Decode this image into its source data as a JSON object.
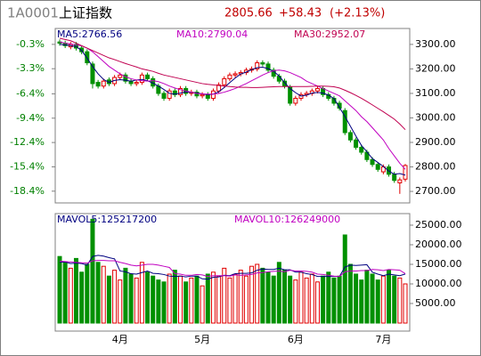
{
  "header": {
    "code": "1A0001",
    "name": "上证指数",
    "price": "2805.66",
    "change": "+58.43",
    "percent": "(+2.13%)"
  },
  "chart_data": [
    {
      "type": "candlestick",
      "categories": [
        null,
        null,
        null,
        null,
        null,
        null,
        null,
        null,
        null,
        null,
        null,
        "4月",
        null,
        null,
        null,
        null,
        null,
        null,
        null,
        null,
        null,
        null,
        null,
        null,
        null,
        null,
        "5月",
        null,
        null,
        null,
        null,
        null,
        null,
        null,
        null,
        null,
        null,
        null,
        null,
        null,
        null,
        null,
        null,
        "6月",
        null,
        null,
        null,
        null,
        null,
        null,
        null,
        null,
        null,
        null,
        null,
        null,
        null,
        null,
        null,
        "7月",
        null,
        null,
        null,
        null
      ],
      "open": [
        3310,
        3305,
        3290,
        3300,
        3285,
        3270,
        3220,
        3145,
        3130,
        3155,
        3140,
        3165,
        3175,
        3150,
        3140,
        3145,
        3175,
        3160,
        3130,
        3100,
        3080,
        3110,
        3095,
        3120,
        3100,
        3105,
        3090,
        3095,
        3080,
        3110,
        3135,
        3160,
        3175,
        3180,
        3185,
        3195,
        3200,
        3225,
        3220,
        3195,
        3170,
        3150,
        3125,
        3060,
        3080,
        3095,
        3100,
        3110,
        3120,
        3095,
        3080,
        3060,
        3030,
        2940,
        2910,
        2880,
        2860,
        2830,
        2810,
        2780,
        2800,
        2770,
        2735,
        2750
      ],
      "high": [
        3320,
        3315,
        3310,
        3310,
        3295,
        3280,
        3230,
        3155,
        3160,
        3165,
        3175,
        3185,
        3185,
        3160,
        3155,
        3185,
        3185,
        3170,
        3140,
        3110,
        3120,
        3120,
        3130,
        3130,
        3115,
        3115,
        3105,
        3105,
        3120,
        3145,
        3170,
        3185,
        3190,
        3195,
        3205,
        3210,
        3235,
        3235,
        3230,
        3205,
        3180,
        3160,
        3135,
        3090,
        3105,
        3110,
        3120,
        3130,
        3130,
        3105,
        3090,
        3070,
        3040,
        2950,
        2920,
        2890,
        2870,
        2840,
        2820,
        2810,
        2810,
        2780,
        2757,
        2812
      ],
      "low": [
        3295,
        3285,
        3280,
        3275,
        3260,
        3215,
        3120,
        3120,
        3120,
        3130,
        3130,
        3155,
        3140,
        3130,
        3130,
        3135,
        3150,
        3120,
        3090,
        3070,
        3070,
        3085,
        3085,
        3090,
        3090,
        3080,
        3080,
        3070,
        3070,
        3100,
        3125,
        3150,
        3165,
        3170,
        3175,
        3185,
        3190,
        3210,
        3185,
        3160,
        3140,
        3120,
        3050,
        3050,
        3070,
        3085,
        3090,
        3100,
        3085,
        3070,
        3050,
        3030,
        2930,
        2900,
        2870,
        2850,
        2820,
        2800,
        2780,
        2770,
        2760,
        2735,
        2690,
        2740
      ],
      "close": [
        3305,
        3295,
        3300,
        3285,
        3270,
        3225,
        3140,
        3130,
        3150,
        3140,
        3165,
        3175,
        3150,
        3140,
        3145,
        3175,
        3160,
        3130,
        3100,
        3080,
        3110,
        3095,
        3120,
        3100,
        3105,
        3090,
        3095,
        3080,
        3110,
        3135,
        3160,
        3175,
        3180,
        3185,
        3195,
        3200,
        3225,
        3220,
        3195,
        3170,
        3150,
        3130,
        3060,
        3080,
        3095,
        3100,
        3110,
        3120,
        3095,
        3080,
        3060,
        3040,
        2940,
        2910,
        2880,
        2860,
        2830,
        2810,
        2790,
        2800,
        2770,
        2745,
        2747,
        2805.66
      ],
      "up_color": "#e00000",
      "down_color": "#009000",
      "series": [
        {
          "name": "MA5:2766.56",
          "color": "#000080",
          "values": [
            3300,
            3298,
            3295,
            3291,
            3275,
            3244,
            3210,
            3180,
            3157,
            3145,
            3153,
            3156,
            3154,
            3150,
            3155,
            3157,
            3152,
            3142,
            3130,
            3116,
            3100,
            3097,
            3101,
            3106,
            3104,
            3102,
            3098,
            3095,
            3097,
            3107,
            3124,
            3144,
            3163,
            3179,
            3187,
            3197,
            3205,
            3207,
            3201,
            3190,
            3171,
            3144,
            3120,
            3103,
            3089,
            3093,
            3101,
            3104,
            3101,
            3093,
            3079,
            3043,
            3006,
            2966,
            2926,
            2888,
            2862,
            2834,
            2818,
            2802,
            2783,
            2770,
            2773,
            2766.56
          ]
        },
        {
          "name": "MA10:2790.04",
          "color": "#c000c0",
          "values": [
            3310,
            3305,
            3302,
            3298,
            3294,
            3285,
            3270,
            3250,
            3230,
            3210,
            3195,
            3180,
            3168,
            3160,
            3155,
            3152,
            3150,
            3152,
            3148,
            3140,
            3130,
            3122,
            3115,
            3110,
            3105,
            3100,
            3098,
            3097,
            3097,
            3100,
            3105,
            3112,
            3120,
            3130,
            3140,
            3152,
            3163,
            3175,
            3185,
            3193,
            3195,
            3192,
            3185,
            3175,
            3165,
            3150,
            3140,
            3130,
            3120,
            3110,
            3100,
            3090,
            3070,
            3050,
            3030,
            3005,
            2985,
            2960,
            2935,
            2910,
            2875,
            2845,
            2815,
            2790.04
          ]
        },
        {
          "name": "MA30:2952.07",
          "color": "#c00050",
          "values": [
            3325,
            3320,
            3315,
            3305,
            3295,
            3285,
            3275,
            3265,
            3255,
            3245,
            3238,
            3230,
            3222,
            3215,
            3208,
            3200,
            3195,
            3190,
            3182,
            3175,
            3170,
            3165,
            3160,
            3155,
            3150,
            3145,
            3140,
            3137,
            3135,
            3132,
            3130,
            3128,
            3126,
            3125,
            3125,
            3124,
            3124,
            3125,
            3126,
            3127,
            3128,
            3128,
            3128,
            3128,
            3128,
            3128,
            3129,
            3130,
            3130,
            3129,
            3127,
            3122,
            3113,
            3103,
            3092,
            3080,
            3067,
            3053,
            3039,
            3025,
            3010,
            2995,
            2975,
            2952.07
          ]
        }
      ],
      "ylim": [
        2653,
        3365
      ],
      "yticks": [
        {
          "value": 2700,
          "label": "2700.00"
        },
        {
          "value": 2800,
          "label": "2800.00"
        },
        {
          "value": 2900,
          "label": "2900.00"
        },
        {
          "value": 3000,
          "label": "3000.00"
        },
        {
          "value": 3100,
          "label": "3100.00"
        },
        {
          "value": 3200,
          "label": "3200.00"
        },
        {
          "value": 3300,
          "label": "3300.00"
        }
      ],
      "y2lim": [
        -19.85,
        1.66
      ],
      "y2ticks": [
        {
          "value": -0.3,
          "label": "-0.3%"
        },
        {
          "value": -3.3,
          "label": "-3.3%"
        },
        {
          "value": -6.4,
          "label": "-6.4%"
        },
        {
          "value": -9.4,
          "label": "-9.4%"
        },
        {
          "value": -12.4,
          "label": "-12.4%"
        },
        {
          "value": -15.4,
          "label": "-15.4%"
        },
        {
          "value": -18.4,
          "label": "-18.4%"
        }
      ]
    },
    {
      "type": "bar",
      "values": [
        17000,
        15500,
        14000,
        16500,
        13000,
        15000,
        26500,
        15500,
        14500,
        12000,
        13500,
        11000,
        14000,
        12500,
        11500,
        15500,
        13000,
        12000,
        11000,
        10500,
        12500,
        13500,
        12000,
        10500,
        11500,
        12000,
        9500,
        12500,
        13000,
        12000,
        14000,
        11500,
        12500,
        13500,
        12000,
        14500,
        15000,
        14000,
        13000,
        12000,
        15500,
        13500,
        12000,
        11000,
        13000,
        11500,
        12500,
        10500,
        12000,
        13000,
        11500,
        12000,
        22500,
        15000,
        12500,
        11000,
        13500,
        12500,
        11000,
        12000,
        13500,
        12000,
        11500,
        10000
      ],
      "series": [
        {
          "name": "MAVOL5:125217200",
          "color": "#000080",
          "values": [
            15500,
            15600,
            15200,
            15300,
            15200,
            14800,
            17000,
            17300,
            17100,
            16700,
            16400,
            13300,
            13100,
            12600,
            12500,
            12900,
            13300,
            12700,
            12600,
            12400,
            12000,
            11900,
            12000,
            11800,
            12000,
            12000,
            11300,
            11200,
            11700,
            11800,
            12200,
            12100,
            12600,
            12700,
            12700,
            12800,
            13500,
            13800,
            13700,
            13700,
            14000,
            13600,
            13600,
            13000,
            13000,
            12600,
            12400,
            11900,
            11900,
            11900,
            11900,
            11900,
            14300,
            14800,
            14700,
            14800,
            14900,
            13000,
            12500,
            12100,
            12500,
            12300,
            12100,
            12521.72
          ]
        },
        {
          "name": "MAVOL10:126249000",
          "color": "#c000c0",
          "values": [
            15800,
            15700,
            15600,
            15500,
            15400,
            15300,
            15900,
            16000,
            16000,
            15900,
            15900,
            15500,
            15200,
            14800,
            14600,
            14800,
            15000,
            15000,
            14800,
            14500,
            14200,
            12600,
            12500,
            12200,
            12200,
            12400,
            12300,
            11900,
            12100,
            12100,
            12100,
            12000,
            12300,
            12200,
            12300,
            12400,
            12800,
            12900,
            13100,
            13200,
            13300,
            13100,
            13500,
            13300,
            13300,
            13200,
            13000,
            12500,
            12400,
            12200,
            12000,
            11900,
            13100,
            13300,
            13300,
            13400,
            13400,
            13700,
            13600,
            13400,
            13700,
            13600,
            13500,
            12624.9
          ]
        }
      ],
      "ylim": [
        -2045,
        27950
      ],
      "yticks": [
        {
          "value": 5000,
          "label": "5000.00"
        },
        {
          "value": 10000,
          "label": "10000.00"
        },
        {
          "value": 15000,
          "label": "15000.00"
        },
        {
          "value": 20000,
          "label": "20000.00"
        },
        {
          "value": 25000,
          "label": "25000.00"
        }
      ]
    }
  ]
}
